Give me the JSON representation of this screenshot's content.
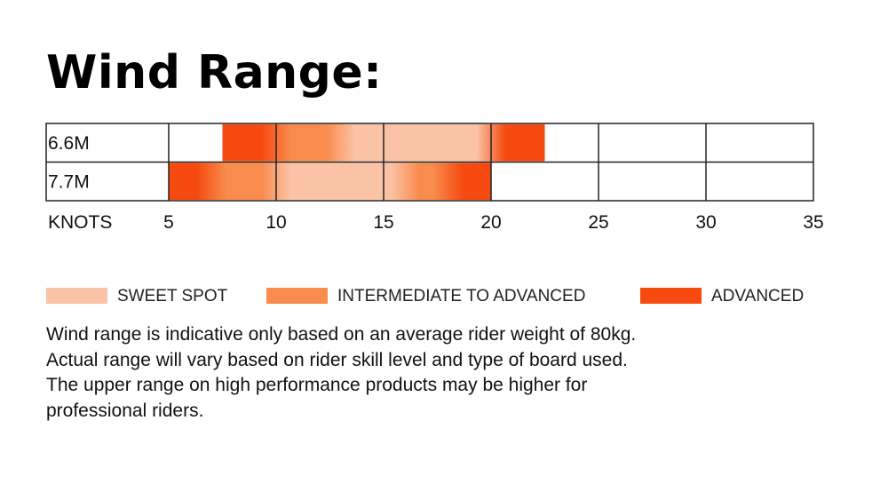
{
  "title": "Wind Range:",
  "chart_data": {
    "type": "bar",
    "orientation": "horizontal-range",
    "xlabel": "KNOTS",
    "xlim": [
      5,
      35
    ],
    "x_ticks": [
      5,
      10,
      15,
      20,
      25,
      30,
      35
    ],
    "grid": true,
    "legend_placement": "below",
    "rows": [
      {
        "label": "6.6M",
        "segments": [
          {
            "from": 7.5,
            "to": 10,
            "zone": "advanced"
          },
          {
            "from": 10,
            "to": 13,
            "zone": "intermediate"
          },
          {
            "from": 13,
            "to": 20,
            "zone": "sweet"
          },
          {
            "from": 20,
            "to": 22.5,
            "zone": "advanced"
          }
        ]
      },
      {
        "label": "7.7M",
        "segments": [
          {
            "from": 5,
            "to": 7,
            "zone": "advanced"
          },
          {
            "from": 7,
            "to": 10,
            "zone": "intermediate"
          },
          {
            "from": 10,
            "to": 16,
            "zone": "sweet"
          },
          {
            "from": 16,
            "to": 18,
            "zone": "intermediate"
          },
          {
            "from": 18,
            "to": 20,
            "zone": "advanced"
          }
        ]
      }
    ],
    "zones": {
      "sweet": {
        "label": "SWEET SPOT",
        "color": "#fbc3a6"
      },
      "intermediate": {
        "label": "INTERMEDIATE TO ADVANCED",
        "color": "#f98b4d"
      },
      "advanced": {
        "label": "ADVANCED",
        "color": "#f64a10"
      }
    }
  },
  "legend": [
    {
      "label": "SWEET SPOT",
      "color": "#fbc3a6"
    },
    {
      "label": "INTERMEDIATE TO ADVANCED",
      "color": "#f98b4d"
    },
    {
      "label": "ADVANCED",
      "color": "#f64a10"
    }
  ],
  "note": [
    "Wind range is indicative only based on an average rider weight of 80kg.",
    "Actual range will vary based on rider skill level and type of board used.",
    "The upper range on high performance products may be higher for",
    "professional riders."
  ]
}
